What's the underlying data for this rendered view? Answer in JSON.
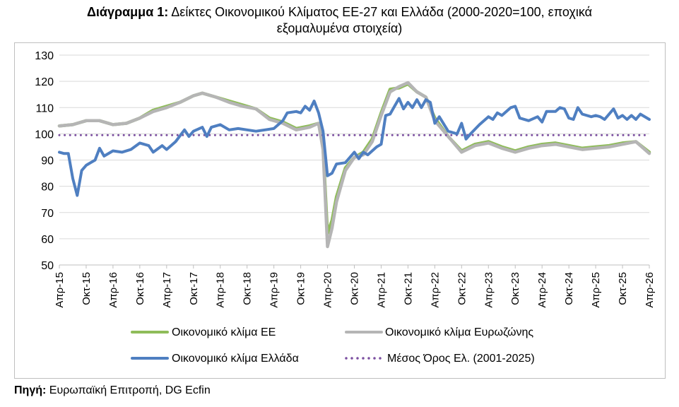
{
  "title": {
    "bold": "Διάγραμμα 1:",
    "line1": "Δείκτες Οικονομικού Κλίματος ΕΕ-27 και Ελλάδα (2000-2020=100, εποχικά",
    "line2": "εξομαλυμένα στοιχεία)"
  },
  "source": {
    "bold": "Πηγή:",
    "text": "Ευρωπαϊκή Επιτροπή, DG Ecfin"
  },
  "chart_data": {
    "type": "line",
    "title": "Δείκτες Οικονομικού Κλίματος ΕΕ-27 και Ελλάδα (2000-2020=100, εποχικά εξομαλυμένα στοιχεία)",
    "xlabel": "",
    "ylabel": "",
    "ylim": [
      50,
      130
    ],
    "yticks": [
      50,
      60,
      70,
      80,
      90,
      100,
      110,
      120,
      130
    ],
    "grid": true,
    "legend_position": "bottom",
    "x_tick_labels": [
      "Απρ-15",
      "Οκτ-15",
      "Απρ-16",
      "Οκτ-16",
      "Απρ-17",
      "Οκτ-17",
      "Απρ-18",
      "Οκτ-18",
      "Απρ-19",
      "Οκτ-19",
      "Απρ-20",
      "Οκτ-20",
      "Απρ-21",
      "Οκτ-21",
      "Απρ-22",
      "Οκτ-22",
      "Απρ-23",
      "Οκτ-23",
      "Απρ-24",
      "Οκτ-24",
      "Απρ-25",
      "Οκτ-25",
      "Απρ-26"
    ],
    "x_start": "2015-04",
    "x_end": "2026-04",
    "series": [
      {
        "name": "Οικονομικό κλίμα ΕΕ",
        "color": "#8fbc5a",
        "points": [
          [
            "2015-04",
            103
          ],
          [
            "2015-07",
            103.5
          ],
          [
            "2015-10",
            105
          ],
          [
            "2016-01",
            105
          ],
          [
            "2016-04",
            103.5
          ],
          [
            "2016-07",
            104
          ],
          [
            "2016-10",
            106
          ],
          [
            "2017-01",
            109
          ],
          [
            "2017-04",
            110.5
          ],
          [
            "2017-07",
            112
          ],
          [
            "2017-10",
            114.5
          ],
          [
            "2017-12",
            115.5
          ],
          [
            "2018-03",
            114
          ],
          [
            "2018-06",
            112.5
          ],
          [
            "2018-09",
            111
          ],
          [
            "2018-12",
            109.5
          ],
          [
            "2019-03",
            106
          ],
          [
            "2019-06",
            104.5
          ],
          [
            "2019-09",
            102
          ],
          [
            "2019-12",
            103
          ],
          [
            "2020-02",
            104
          ],
          [
            "2020-03",
            95
          ],
          [
            "2020-04",
            62
          ],
          [
            "2020-05",
            67
          ],
          [
            "2020-06",
            76
          ],
          [
            "2020-08",
            87
          ],
          [
            "2020-10",
            91
          ],
          [
            "2020-12",
            93
          ],
          [
            "2021-02",
            98
          ],
          [
            "2021-04",
            108
          ],
          [
            "2021-06",
            117
          ],
          [
            "2021-08",
            117.5
          ],
          [
            "2021-10",
            119
          ],
          [
            "2021-12",
            116
          ],
          [
            "2022-02",
            114
          ],
          [
            "2022-04",
            106
          ],
          [
            "2022-07",
            99
          ],
          [
            "2022-10",
            93.5
          ],
          [
            "2023-01",
            96
          ],
          [
            "2023-04",
            97
          ],
          [
            "2023-07",
            95
          ],
          [
            "2023-10",
            93.5
          ],
          [
            "2024-01",
            95
          ],
          [
            "2024-04",
            96
          ],
          [
            "2024-07",
            96.5
          ],
          [
            "2024-10",
            95.5
          ],
          [
            "2025-01",
            94.5
          ],
          [
            "2025-04",
            95
          ],
          [
            "2025-07",
            95.5
          ],
          [
            "2025-10",
            96.5
          ],
          [
            "2026-01",
            97
          ],
          [
            "2026-04",
            93
          ]
        ]
      },
      {
        "name": "Οικονομικό κλίμα Ευρωζώνης",
        "color": "#b5b5b5",
        "points": [
          [
            "2015-04",
            103
          ],
          [
            "2015-07",
            103.5
          ],
          [
            "2015-10",
            105
          ],
          [
            "2016-01",
            105
          ],
          [
            "2016-04",
            103.5
          ],
          [
            "2016-07",
            104
          ],
          [
            "2016-10",
            106
          ],
          [
            "2017-01",
            108.5
          ],
          [
            "2017-04",
            110
          ],
          [
            "2017-07",
            112
          ],
          [
            "2017-10",
            114.5
          ],
          [
            "2017-12",
            115.5
          ],
          [
            "2018-03",
            114
          ],
          [
            "2018-06",
            112
          ],
          [
            "2018-09",
            110.5
          ],
          [
            "2018-12",
            109.5
          ],
          [
            "2019-03",
            105.5
          ],
          [
            "2019-06",
            104
          ],
          [
            "2019-09",
            101.5
          ],
          [
            "2019-12",
            102.5
          ],
          [
            "2020-02",
            104
          ],
          [
            "2020-03",
            94
          ],
          [
            "2020-04",
            57
          ],
          [
            "2020-05",
            64
          ],
          [
            "2020-06",
            74
          ],
          [
            "2020-08",
            86
          ],
          [
            "2020-10",
            91
          ],
          [
            "2020-12",
            92
          ],
          [
            "2021-02",
            97
          ],
          [
            "2021-04",
            107
          ],
          [
            "2021-06",
            116
          ],
          [
            "2021-08",
            118
          ],
          [
            "2021-10",
            119.5
          ],
          [
            "2021-12",
            116
          ],
          [
            "2022-02",
            114
          ],
          [
            "2022-04",
            105
          ],
          [
            "2022-07",
            99
          ],
          [
            "2022-10",
            93
          ],
          [
            "2023-01",
            95.5
          ],
          [
            "2023-04",
            96.5
          ],
          [
            "2023-07",
            94.5
          ],
          [
            "2023-10",
            93
          ],
          [
            "2024-01",
            94.5
          ],
          [
            "2024-04",
            95.5
          ],
          [
            "2024-07",
            96
          ],
          [
            "2024-10",
            95
          ],
          [
            "2025-01",
            94
          ],
          [
            "2025-04",
            94.5
          ],
          [
            "2025-07",
            95
          ],
          [
            "2025-10",
            96
          ],
          [
            "2026-01",
            97
          ],
          [
            "2026-04",
            92.5
          ]
        ]
      },
      {
        "name": "Οικονομικό κλίμα Ελλάδα",
        "color": "#4f7fc1",
        "points": [
          [
            "2015-04",
            93
          ],
          [
            "2015-05",
            92.5
          ],
          [
            "2015-06",
            92.5
          ],
          [
            "2015-07",
            83
          ],
          [
            "2015-08",
            76.5
          ],
          [
            "2015-09",
            86
          ],
          [
            "2015-10",
            88
          ],
          [
            "2015-12",
            90
          ],
          [
            "2016-01",
            94.5
          ],
          [
            "2016-02",
            91.5
          ],
          [
            "2016-04",
            93.5
          ],
          [
            "2016-06",
            93
          ],
          [
            "2016-08",
            94
          ],
          [
            "2016-10",
            96.5
          ],
          [
            "2016-12",
            95.5
          ],
          [
            "2017-01",
            93
          ],
          [
            "2017-03",
            95.5
          ],
          [
            "2017-04",
            94
          ],
          [
            "2017-06",
            97
          ],
          [
            "2017-08",
            101.5
          ],
          [
            "2017-09",
            99
          ],
          [
            "2017-10",
            101
          ],
          [
            "2017-12",
            102.5
          ],
          [
            "2018-01",
            99
          ],
          [
            "2018-02",
            102.5
          ],
          [
            "2018-04",
            103.5
          ],
          [
            "2018-06",
            101.5
          ],
          [
            "2018-08",
            102
          ],
          [
            "2018-10",
            101.5
          ],
          [
            "2018-12",
            101
          ],
          [
            "2019-02",
            101.5
          ],
          [
            "2019-04",
            102
          ],
          [
            "2019-06",
            105
          ],
          [
            "2019-07",
            108
          ],
          [
            "2019-09",
            108.5
          ],
          [
            "2019-10",
            108
          ],
          [
            "2019-11",
            110.5
          ],
          [
            "2019-12",
            109
          ],
          [
            "2020-01",
            112.5
          ],
          [
            "2020-02",
            108
          ],
          [
            "2020-03",
            101
          ],
          [
            "2020-04",
            84
          ],
          [
            "2020-05",
            85
          ],
          [
            "2020-06",
            88.5
          ],
          [
            "2020-08",
            89
          ],
          [
            "2020-10",
            93
          ],
          [
            "2020-11",
            90.5
          ],
          [
            "2020-12",
            93
          ],
          [
            "2021-01",
            92
          ],
          [
            "2021-03",
            95
          ],
          [
            "2021-04",
            96
          ],
          [
            "2021-05",
            107
          ],
          [
            "2021-06",
            107.5
          ],
          [
            "2021-07",
            110.5
          ],
          [
            "2021-08",
            113.5
          ],
          [
            "2021-09",
            109.5
          ],
          [
            "2021-10",
            112
          ],
          [
            "2021-11",
            110
          ],
          [
            "2021-12",
            113
          ],
          [
            "2022-01",
            110
          ],
          [
            "2022-02",
            113
          ],
          [
            "2022-03",
            112
          ],
          [
            "2022-04",
            104
          ],
          [
            "2022-05",
            106.5
          ],
          [
            "2022-07",
            101
          ],
          [
            "2022-09",
            100
          ],
          [
            "2022-10",
            104
          ],
          [
            "2022-11",
            98
          ],
          [
            "2022-12",
            100
          ],
          [
            "2023-02",
            103.5
          ],
          [
            "2023-04",
            106.5
          ],
          [
            "2023-05",
            105.5
          ],
          [
            "2023-06",
            108
          ],
          [
            "2023-07",
            107
          ],
          [
            "2023-09",
            110
          ],
          [
            "2023-10",
            110.5
          ],
          [
            "2023-11",
            106
          ],
          [
            "2024-01",
            105
          ],
          [
            "2024-03",
            106.5
          ],
          [
            "2024-04",
            104.5
          ],
          [
            "2024-05",
            108.5
          ],
          [
            "2024-07",
            108.5
          ],
          [
            "2024-08",
            110
          ],
          [
            "2024-09",
            109.5
          ],
          [
            "2024-10",
            106
          ],
          [
            "2024-11",
            105.5
          ],
          [
            "2024-12",
            110
          ],
          [
            "2025-01",
            107.5
          ],
          [
            "2025-03",
            106.5
          ],
          [
            "2025-04",
            107
          ],
          [
            "2025-05",
            106.5
          ],
          [
            "2025-06",
            105.5
          ],
          [
            "2025-08",
            109.5
          ],
          [
            "2025-09",
            106
          ],
          [
            "2025-10",
            107
          ],
          [
            "2025-11",
            105.5
          ],
          [
            "2025-12",
            107
          ],
          [
            "2026-01",
            105.5
          ],
          [
            "2026-02",
            107.5
          ],
          [
            "2026-04",
            105.5
          ]
        ]
      },
      {
        "name": "Μέσος Όρος Ελ. (2001-2025)",
        "color": "#7b4fa0",
        "style": "dotted",
        "value": 99.5
      }
    ]
  }
}
